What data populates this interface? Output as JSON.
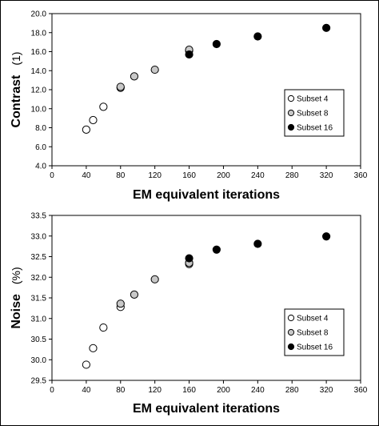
{
  "chart_data": [
    {
      "type": "scatter",
      "xlabel": "EM equivalent iterations",
      "ylabel": "Contrast",
      "yunit": "(1)",
      "xlim": [
        0,
        360
      ],
      "ylim": [
        4.0,
        20.0
      ],
      "xticks": [
        "0",
        "40",
        "80",
        "120",
        "160",
        "200",
        "240",
        "280",
        "320",
        "360"
      ],
      "yticks": [
        "4.0",
        "6.0",
        "8.0",
        "10.0",
        "12.0",
        "14.0",
        "16.0",
        "18.0",
        "20.0"
      ],
      "legend_position": "right",
      "series": [
        {
          "name": "Subset 4",
          "color": "#ffffff",
          "points": [
            [
              40,
              7.8
            ],
            [
              48,
              8.8
            ],
            [
              60,
              10.2
            ],
            [
              80,
              12.2
            ],
            [
              160,
              16.1
            ]
          ]
        },
        {
          "name": "Subset 8",
          "color": "#c8c8c8",
          "points": [
            [
              80,
              12.3
            ],
            [
              96,
              13.4
            ],
            [
              120,
              14.1
            ],
            [
              160,
              16.2
            ]
          ]
        },
        {
          "name": "Subset 16",
          "color": "#000000",
          "points": [
            [
              160,
              15.7
            ],
            [
              192,
              16.8
            ],
            [
              240,
              17.6
            ],
            [
              320,
              18.5
            ]
          ]
        }
      ]
    },
    {
      "type": "scatter",
      "xlabel": "EM equivalent iterations",
      "ylabel": "Noise",
      "yunit": "(%)",
      "xlim": [
        0,
        360
      ],
      "ylim": [
        29.5,
        33.5
      ],
      "xticks": [
        "0",
        "40",
        "80",
        "120",
        "160",
        "200",
        "240",
        "280",
        "320",
        "360"
      ],
      "yticks": [
        "29.5",
        "30.0",
        "30.5",
        "31.0",
        "31.5",
        "32.0",
        "32.5",
        "33.0",
        "33.5"
      ],
      "legend_position": "bottom-right",
      "series": [
        {
          "name": "Subset 4",
          "color": "#ffffff",
          "points": [
            [
              40,
              29.88
            ],
            [
              48,
              30.28
            ],
            [
              60,
              30.78
            ],
            [
              80,
              31.28
            ],
            [
              160,
              32.32
            ]
          ]
        },
        {
          "name": "Subset 8",
          "color": "#c8c8c8",
          "points": [
            [
              80,
              31.36
            ],
            [
              96,
              31.58
            ],
            [
              120,
              31.95
            ],
            [
              160,
              32.35
            ]
          ]
        },
        {
          "name": "Subset 16",
          "color": "#000000",
          "points": [
            [
              160,
              32.46
            ],
            [
              192,
              32.67
            ],
            [
              240,
              32.81
            ],
            [
              320,
              32.99
            ]
          ]
        }
      ]
    }
  ]
}
